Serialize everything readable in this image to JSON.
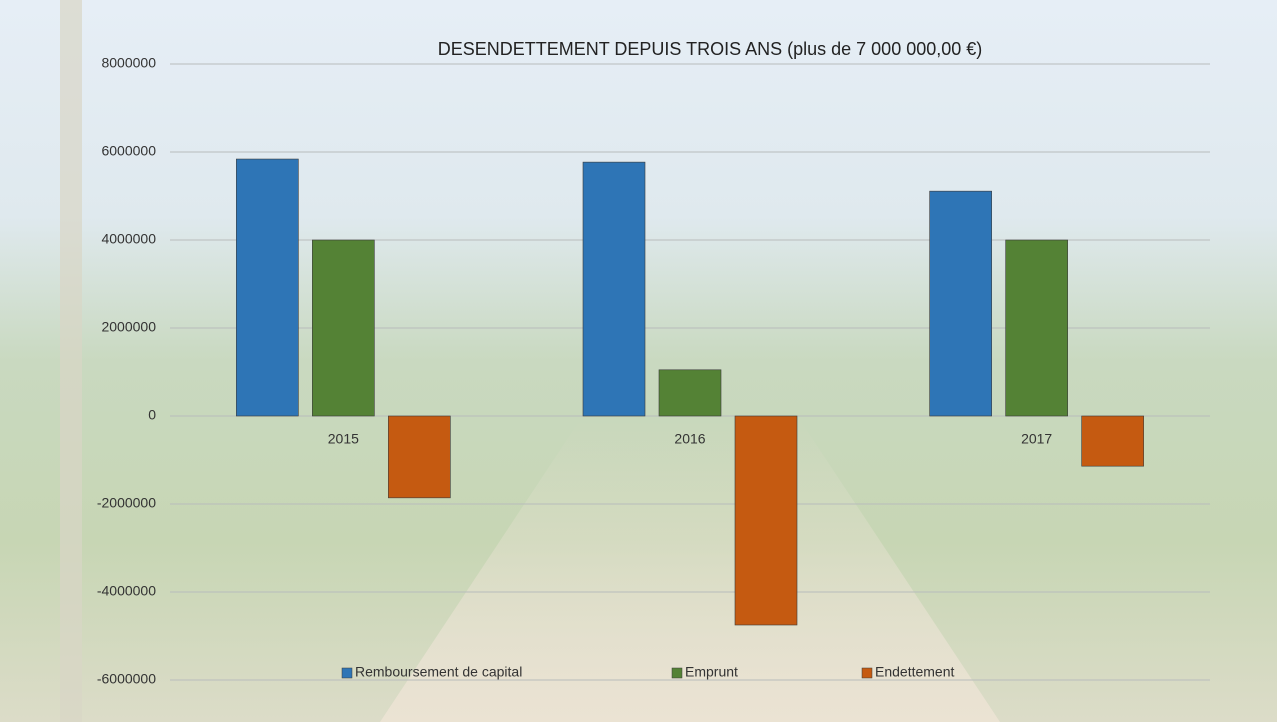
{
  "chart_data": {
    "type": "bar",
    "title": "DESENDETTEMENT DEPUIS TROIS ANS  (plus de 7 000 000,00 €)",
    "categories": [
      "2015",
      "2016",
      "2017"
    ],
    "series": [
      {
        "name": "Remboursement de capital",
        "color": "#2e75b6",
        "values": [
          5840000,
          5770000,
          5110000
        ]
      },
      {
        "name": "Emprunt",
        "color": "#548235",
        "values": [
          4000000,
          1050000,
          4000000
        ]
      },
      {
        "name": "Endettement",
        "color": "#c55a11",
        "values": [
          -1860000,
          -4750000,
          -1140000
        ]
      }
    ],
    "ylim": [
      -6000000,
      8000000
    ],
    "yticks": [
      -6000000,
      -4000000,
      -2000000,
      0,
      2000000,
      4000000,
      6000000,
      8000000
    ],
    "grid": true,
    "legend": "bottom"
  }
}
